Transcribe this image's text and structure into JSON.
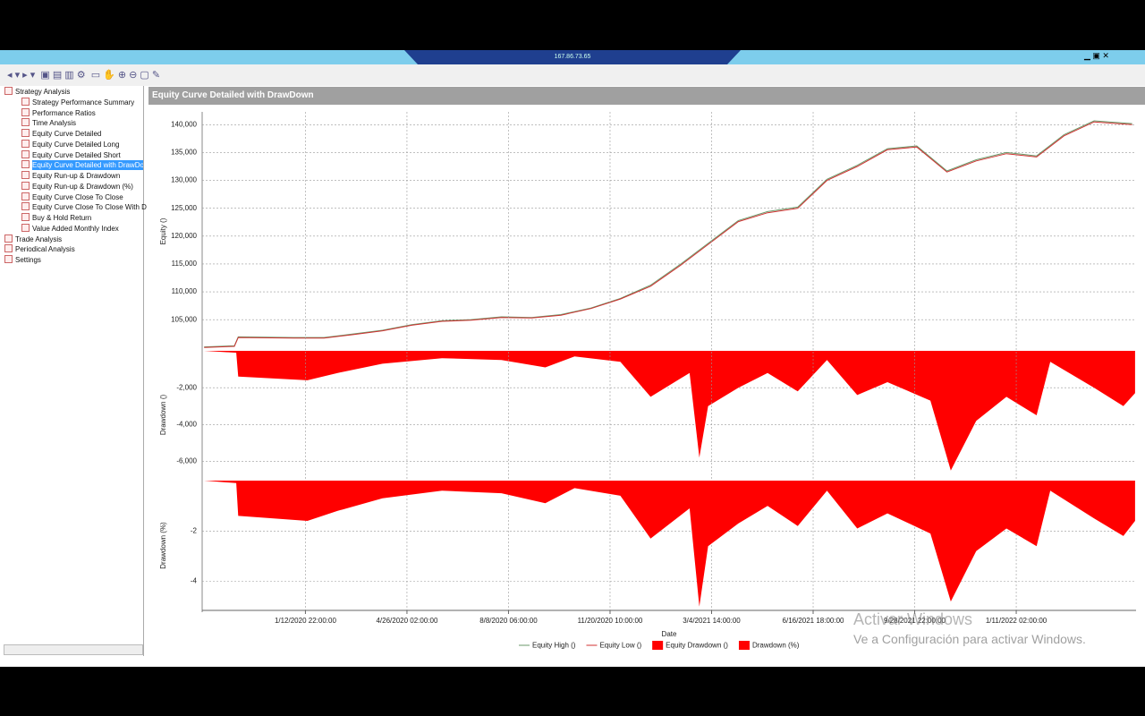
{
  "window": {
    "title": "167.86.73.65"
  },
  "tree": {
    "items": [
      {
        "label": "Strategy Analysis",
        "children": [
          "Strategy Performance Summary",
          "Performance Ratios",
          "Time Analysis",
          "Equity Curve Detailed",
          "Equity Curve Detailed Long",
          "Equity Curve Detailed Short",
          "Equity Curve Detailed with DrawDown",
          "Equity Run-up & Drawdown",
          "Equity Run-up & Drawdown (%)",
          "Equity Curve Close To Close",
          "Equity Curve Close To Close With D",
          "Buy & Hold Return",
          "Value Added Monthly Index"
        ]
      },
      {
        "label": "Trade Analysis"
      },
      {
        "label": "Periodical Analysis"
      },
      {
        "label": "Settings"
      }
    ]
  },
  "panel_title": "Equity Curve Detailed with DrawDown",
  "watermark": {
    "title": "Activar Windows",
    "text": "Ve a Configuración para activar Windows."
  },
  "chart_data": [
    {
      "type": "line",
      "ylabel": "Equity ()",
      "xlim": [
        "2019-09-29T00:00",
        "2022-05-14T00:00"
      ],
      "ylim": [
        99400,
        142300
      ],
      "yticks": [
        {
          "value": 105000,
          "label": "105,000"
        },
        {
          "value": 110000,
          "label": "110,000"
        },
        {
          "value": 115000,
          "label": "115,000"
        },
        {
          "value": 120000,
          "label": "120,000"
        },
        {
          "value": 125000,
          "label": "125,000"
        },
        {
          "value": 130000,
          "label": "130,000"
        },
        {
          "value": 135000,
          "label": "135,000"
        },
        {
          "value": 140000,
          "label": "140,000"
        }
      ],
      "grid": true,
      "x": [
        "2019-10-01T00:00",
        "2019-11-01T00:00",
        "2019-11-05T00:00",
        "2020-01-01T00:00",
        "2020-02-01T00:00",
        "2020-03-01T00:00",
        "2020-04-01T00:00",
        "2020-05-01T00:00",
        "2020-06-01T00:00",
        "2020-07-01T00:00",
        "2020-08-01T00:00",
        "2020-09-01T00:00",
        "2020-10-01T00:00",
        "2020-11-01T00:00",
        "2020-12-01T00:00",
        "2021-01-01T00:00",
        "2021-02-01T00:00",
        "2021-03-01T00:00",
        "2021-04-01T00:00",
        "2021-05-01T00:00",
        "2021-06-01T00:00",
        "2021-07-01T00:00",
        "2021-08-01T00:00",
        "2021-09-01T00:00",
        "2021-10-01T00:00",
        "2021-11-01T00:00",
        "2021-12-01T00:00",
        "2022-01-01T00:00",
        "2022-02-01T00:00",
        "2022-03-01T00:00",
        "2022-04-01T00:00",
        "2022-05-10T00:00"
      ],
      "series": [
        {
          "name": "Equity High ()",
          "color": "#6a9a6a",
          "values": [
            100100,
            100300,
            101900,
            101800,
            101800,
            102400,
            103100,
            104100,
            104800,
            105000,
            105500,
            105400,
            105900,
            107100,
            108800,
            111200,
            115000,
            118700,
            122800,
            124400,
            125200,
            130200,
            132700,
            135700,
            136200,
            131700,
            133700,
            135000,
            134400,
            138200,
            140700,
            140200
          ]
        },
        {
          "name": "Equity Low ()",
          "color": "#d03030",
          "values": [
            100000,
            100200,
            101800,
            101700,
            101700,
            102300,
            103000,
            104000,
            104700,
            104900,
            105400,
            105300,
            105800,
            107000,
            108700,
            111000,
            114800,
            118500,
            122600,
            124200,
            125000,
            130000,
            132500,
            135500,
            136000,
            131500,
            133500,
            134800,
            134200,
            138000,
            140500,
            140000
          ]
        }
      ]
    },
    {
      "type": "area",
      "ylabel": "Drawdown ()",
      "xlim": [
        "2019-09-29T00:00",
        "2022-05-14T00:00"
      ],
      "ylim": [
        -6950,
        0
      ],
      "yticks": [
        {
          "value": -2000,
          "label": "-2,000"
        },
        {
          "value": -4000,
          "label": "-4,000"
        },
        {
          "value": -6000,
          "label": "-6,000"
        }
      ],
      "grid": true,
      "x": [
        "2019-10-01T00:00",
        "2019-11-03T00:00",
        "2019-11-05T00:00",
        "2020-01-15T00:00",
        "2020-02-15T00:00",
        "2020-04-01T00:00",
        "2020-06-01T00:00",
        "2020-08-01T00:00",
        "2020-09-15T00:00",
        "2020-10-15T00:00",
        "2020-12-01T00:00",
        "2021-01-01T00:00",
        "2021-02-10T00:00",
        "2021-02-20T00:00",
        "2021-03-01T00:00",
        "2021-04-01T00:00",
        "2021-05-01T00:00",
        "2021-06-01T00:00",
        "2021-07-01T00:00",
        "2021-08-01T00:00",
        "2021-09-01T00:00",
        "2021-10-15T00:00",
        "2021-11-05T00:00",
        "2021-12-01T00:00",
        "2022-01-01T00:00",
        "2022-02-01T00:00",
        "2022-02-15T00:00",
        "2022-04-01T00:00",
        "2022-05-01T00:00",
        "2022-05-13T00:00"
      ],
      "series": [
        {
          "name": "Equity Drawdown ()",
          "color": "#ff0000",
          "values": [
            0,
            -100,
            -1400,
            -1600,
            -1200,
            -700,
            -400,
            -500,
            -900,
            -300,
            -600,
            -2500,
            -1200,
            -5800,
            -3000,
            -2000,
            -1200,
            -2200,
            -500,
            -2400,
            -1700,
            -2700,
            -6500,
            -3800,
            -2500,
            -3500,
            -600,
            -2000,
            -3000,
            -2300
          ]
        }
      ]
    },
    {
      "type": "area",
      "ylabel": "Drawdown (%)",
      "xlabel": "Date",
      "xlim": [
        "2019-09-29T00:00",
        "2022-05-14T00:00"
      ],
      "ylim": [
        -5.15,
        0
      ],
      "yticks": [
        -2,
        -4
      ],
      "grid": true,
      "xticks": [
        {
          "value": "2020-01-12T22:00",
          "label": "1/12/2020 22:00:00"
        },
        {
          "value": "2020-04-26T02:00",
          "label": "4/26/2020 02:00:00"
        },
        {
          "value": "2020-08-08T06:00",
          "label": "8/8/2020 06:00:00"
        },
        {
          "value": "2020-11-20T10:00",
          "label": "11/20/2020 10:00:00"
        },
        {
          "value": "2021-03-04T14:00",
          "label": "3/4/2021 14:00:00"
        },
        {
          "value": "2021-06-16T18:00",
          "label": "6/16/2021 18:00:00"
        },
        {
          "value": "2021-09-28T22:00",
          "label": "9/28/2021 22:00:00"
        },
        {
          "value": "2022-01-11T02:00",
          "label": "1/11/2022 02:00:00"
        }
      ],
      "x": [
        "2019-10-01T00:00",
        "2019-11-03T00:00",
        "2019-11-05T00:00",
        "2020-01-15T00:00",
        "2020-02-15T00:00",
        "2020-04-01T00:00",
        "2020-06-01T00:00",
        "2020-08-01T00:00",
        "2020-09-15T00:00",
        "2020-10-15T00:00",
        "2020-12-01T00:00",
        "2021-01-01T00:00",
        "2021-02-10T00:00",
        "2021-02-20T00:00",
        "2021-03-01T00:00",
        "2021-04-01T00:00",
        "2021-05-01T00:00",
        "2021-06-01T00:00",
        "2021-07-01T00:00",
        "2021-08-01T00:00",
        "2021-09-01T00:00",
        "2021-10-15T00:00",
        "2021-11-05T00:00",
        "2021-12-01T00:00",
        "2022-01-01T00:00",
        "2022-02-01T00:00",
        "2022-02-15T00:00",
        "2022-04-01T00:00",
        "2022-05-01T00:00",
        "2022-05-13T00:00"
      ],
      "series": [
        {
          "name": "Drawdown (%)",
          "color": "#ff0000",
          "values": [
            0,
            -0.1,
            -1.4,
            -1.6,
            -1.2,
            -0.7,
            -0.4,
            -0.5,
            -0.9,
            -0.3,
            -0.6,
            -2.3,
            -1.1,
            -5.0,
            -2.6,
            -1.7,
            -1.0,
            -1.8,
            -0.4,
            -1.9,
            -1.3,
            -2.1,
            -4.8,
            -2.8,
            -1.9,
            -2.6,
            -0.4,
            -1.5,
            -2.2,
            -1.6
          ]
        }
      ]
    }
  ]
}
